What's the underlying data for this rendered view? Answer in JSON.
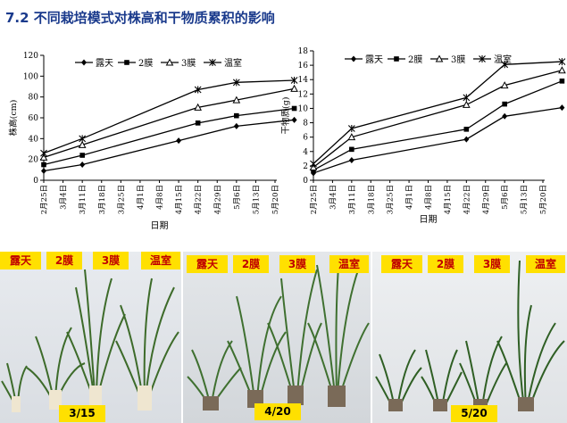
{
  "title": "7.2 不同栽培模式对株高和干物质累积的影响",
  "chart_data": [
    {
      "type": "line",
      "xlabel": "日期",
      "ylabel": "株高(cm)",
      "ylim": [
        0,
        120
      ],
      "yticks": [
        0,
        20,
        40,
        60,
        80,
        100,
        120
      ],
      "xticks": [
        "2月25日",
        "3月4日",
        "3月11日",
        "3月18日",
        "3月25日",
        "4月1日",
        "4月8日",
        "4月15日",
        "4月22日",
        "4月29日",
        "5月6日",
        "5月13日",
        "5月20日"
      ],
      "legend": "top",
      "series": [
        {
          "name": "露天",
          "marker": "diamond",
          "points": [
            [
              0,
              9
            ],
            [
              2,
              15
            ],
            [
              7,
              38
            ],
            [
              10,
              52
            ],
            [
              13,
              58
            ]
          ]
        },
        {
          "name": "2膜",
          "marker": "square",
          "points": [
            [
              0,
              15
            ],
            [
              2,
              24
            ],
            [
              8,
              55
            ],
            [
              10,
              62
            ],
            [
              13,
              69
            ]
          ]
        },
        {
          "name": "3膜",
          "marker": "triangle",
          "points": [
            [
              0,
              22
            ],
            [
              2,
              34
            ],
            [
              8,
              70
            ],
            [
              10,
              77
            ],
            [
              13,
              88
            ]
          ]
        },
        {
          "name": "温室",
          "marker": "cross",
          "points": [
            [
              0,
              26
            ],
            [
              2,
              40
            ],
            [
              8,
              87
            ],
            [
              10,
              94
            ],
            [
              13,
              96
            ]
          ]
        }
      ]
    },
    {
      "type": "line",
      "xlabel": "日期",
      "ylabel": "干物质(g)",
      "ylim": [
        0,
        18
      ],
      "yticks": [
        0,
        2,
        4,
        6,
        8,
        10,
        12,
        14,
        16,
        18
      ],
      "xticks": [
        "2月25日",
        "3月4日",
        "3月11日",
        "3月18日",
        "3月25日",
        "4月1日",
        "4月8日",
        "4月15日",
        "4月22日",
        "4月29日",
        "5月6日",
        "5月13日",
        "5月20日"
      ],
      "legend": "top",
      "series": [
        {
          "name": "露天",
          "marker": "diamond",
          "points": [
            [
              0,
              1.0
            ],
            [
              2,
              2.8
            ],
            [
              8,
              5.7
            ],
            [
              10,
              8.9
            ],
            [
              13,
              10.1
            ]
          ]
        },
        {
          "name": "2膜",
          "marker": "square",
          "points": [
            [
              0,
              1.4
            ],
            [
              2,
              4.3
            ],
            [
              8,
              7.1
            ],
            [
              10,
              10.6
            ],
            [
              13,
              13.8
            ]
          ]
        },
        {
          "name": "3膜",
          "marker": "triangle",
          "points": [
            [
              0,
              1.8
            ],
            [
              2,
              6.0
            ],
            [
              8,
              10.5
            ],
            [
              10,
              13.2
            ],
            [
              13,
              15.3
            ]
          ]
        },
        {
          "name": "温室",
          "marker": "cross",
          "points": [
            [
              0,
              2.3
            ],
            [
              2,
              7.2
            ],
            [
              8,
              11.5
            ],
            [
              10,
              16.1
            ],
            [
              13,
              16.5
            ]
          ]
        }
      ]
    }
  ],
  "photos": [
    {
      "labels": [
        "露天",
        "2膜",
        "3膜",
        "温室"
      ],
      "date": "3/15"
    },
    {
      "labels": [
        "露天",
        "2膜",
        "3膜",
        "温室"
      ],
      "date": "4/20"
    },
    {
      "labels": [
        "露天",
        "2膜",
        "3膜",
        "温室"
      ],
      "date": "5/20"
    }
  ]
}
